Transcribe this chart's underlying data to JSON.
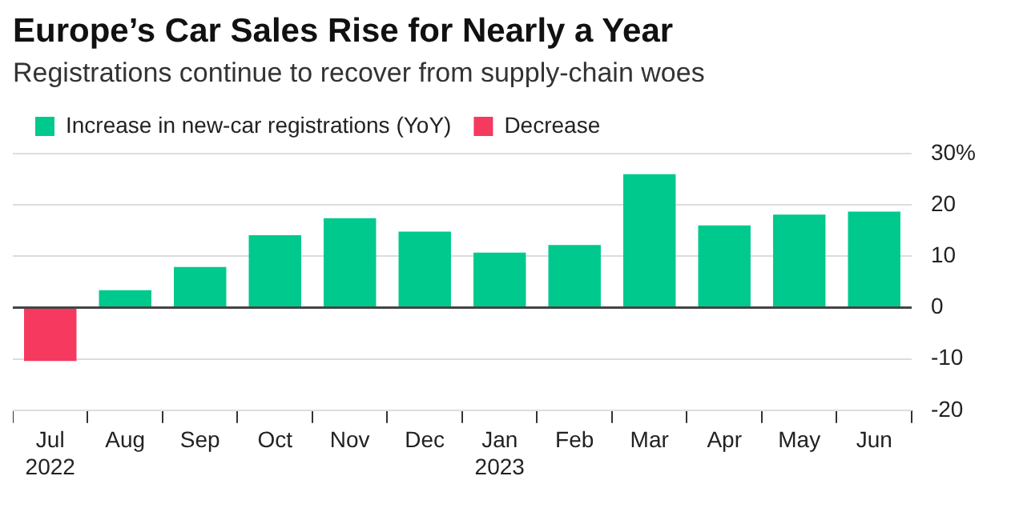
{
  "chart_data": {
    "type": "bar",
    "title": "Europe’s Car Sales Rise for Nearly a Year",
    "subtitle": "Registrations continue to recover from supply-chain woes",
    "categories": [
      "Jul\n2022",
      "Aug",
      "Sep",
      "Oct",
      "Nov",
      "Dec",
      "Jan\n2023",
      "Feb",
      "Mar",
      "Apr",
      "May",
      "Jun"
    ],
    "series": [
      {
        "name": "Increase in new-car registrations (YoY)",
        "color": "#00c98d",
        "values": [
          null,
          3.4,
          7.9,
          14.1,
          17.4,
          14.8,
          10.7,
          12.2,
          26.0,
          16.0,
          18.1,
          18.7
        ]
      },
      {
        "name": "Decrease",
        "color": "#f5395f",
        "values": [
          -10.4,
          null,
          null,
          null,
          null,
          null,
          null,
          null,
          null,
          null,
          null,
          null
        ]
      }
    ],
    "stacked": true,
    "ylim": [
      -20,
      30
    ],
    "yticks": [
      -20,
      -10,
      0,
      10,
      20,
      {
        "value": 30,
        "label": "30%"
      }
    ],
    "grid": "y",
    "legend": "top left"
  }
}
